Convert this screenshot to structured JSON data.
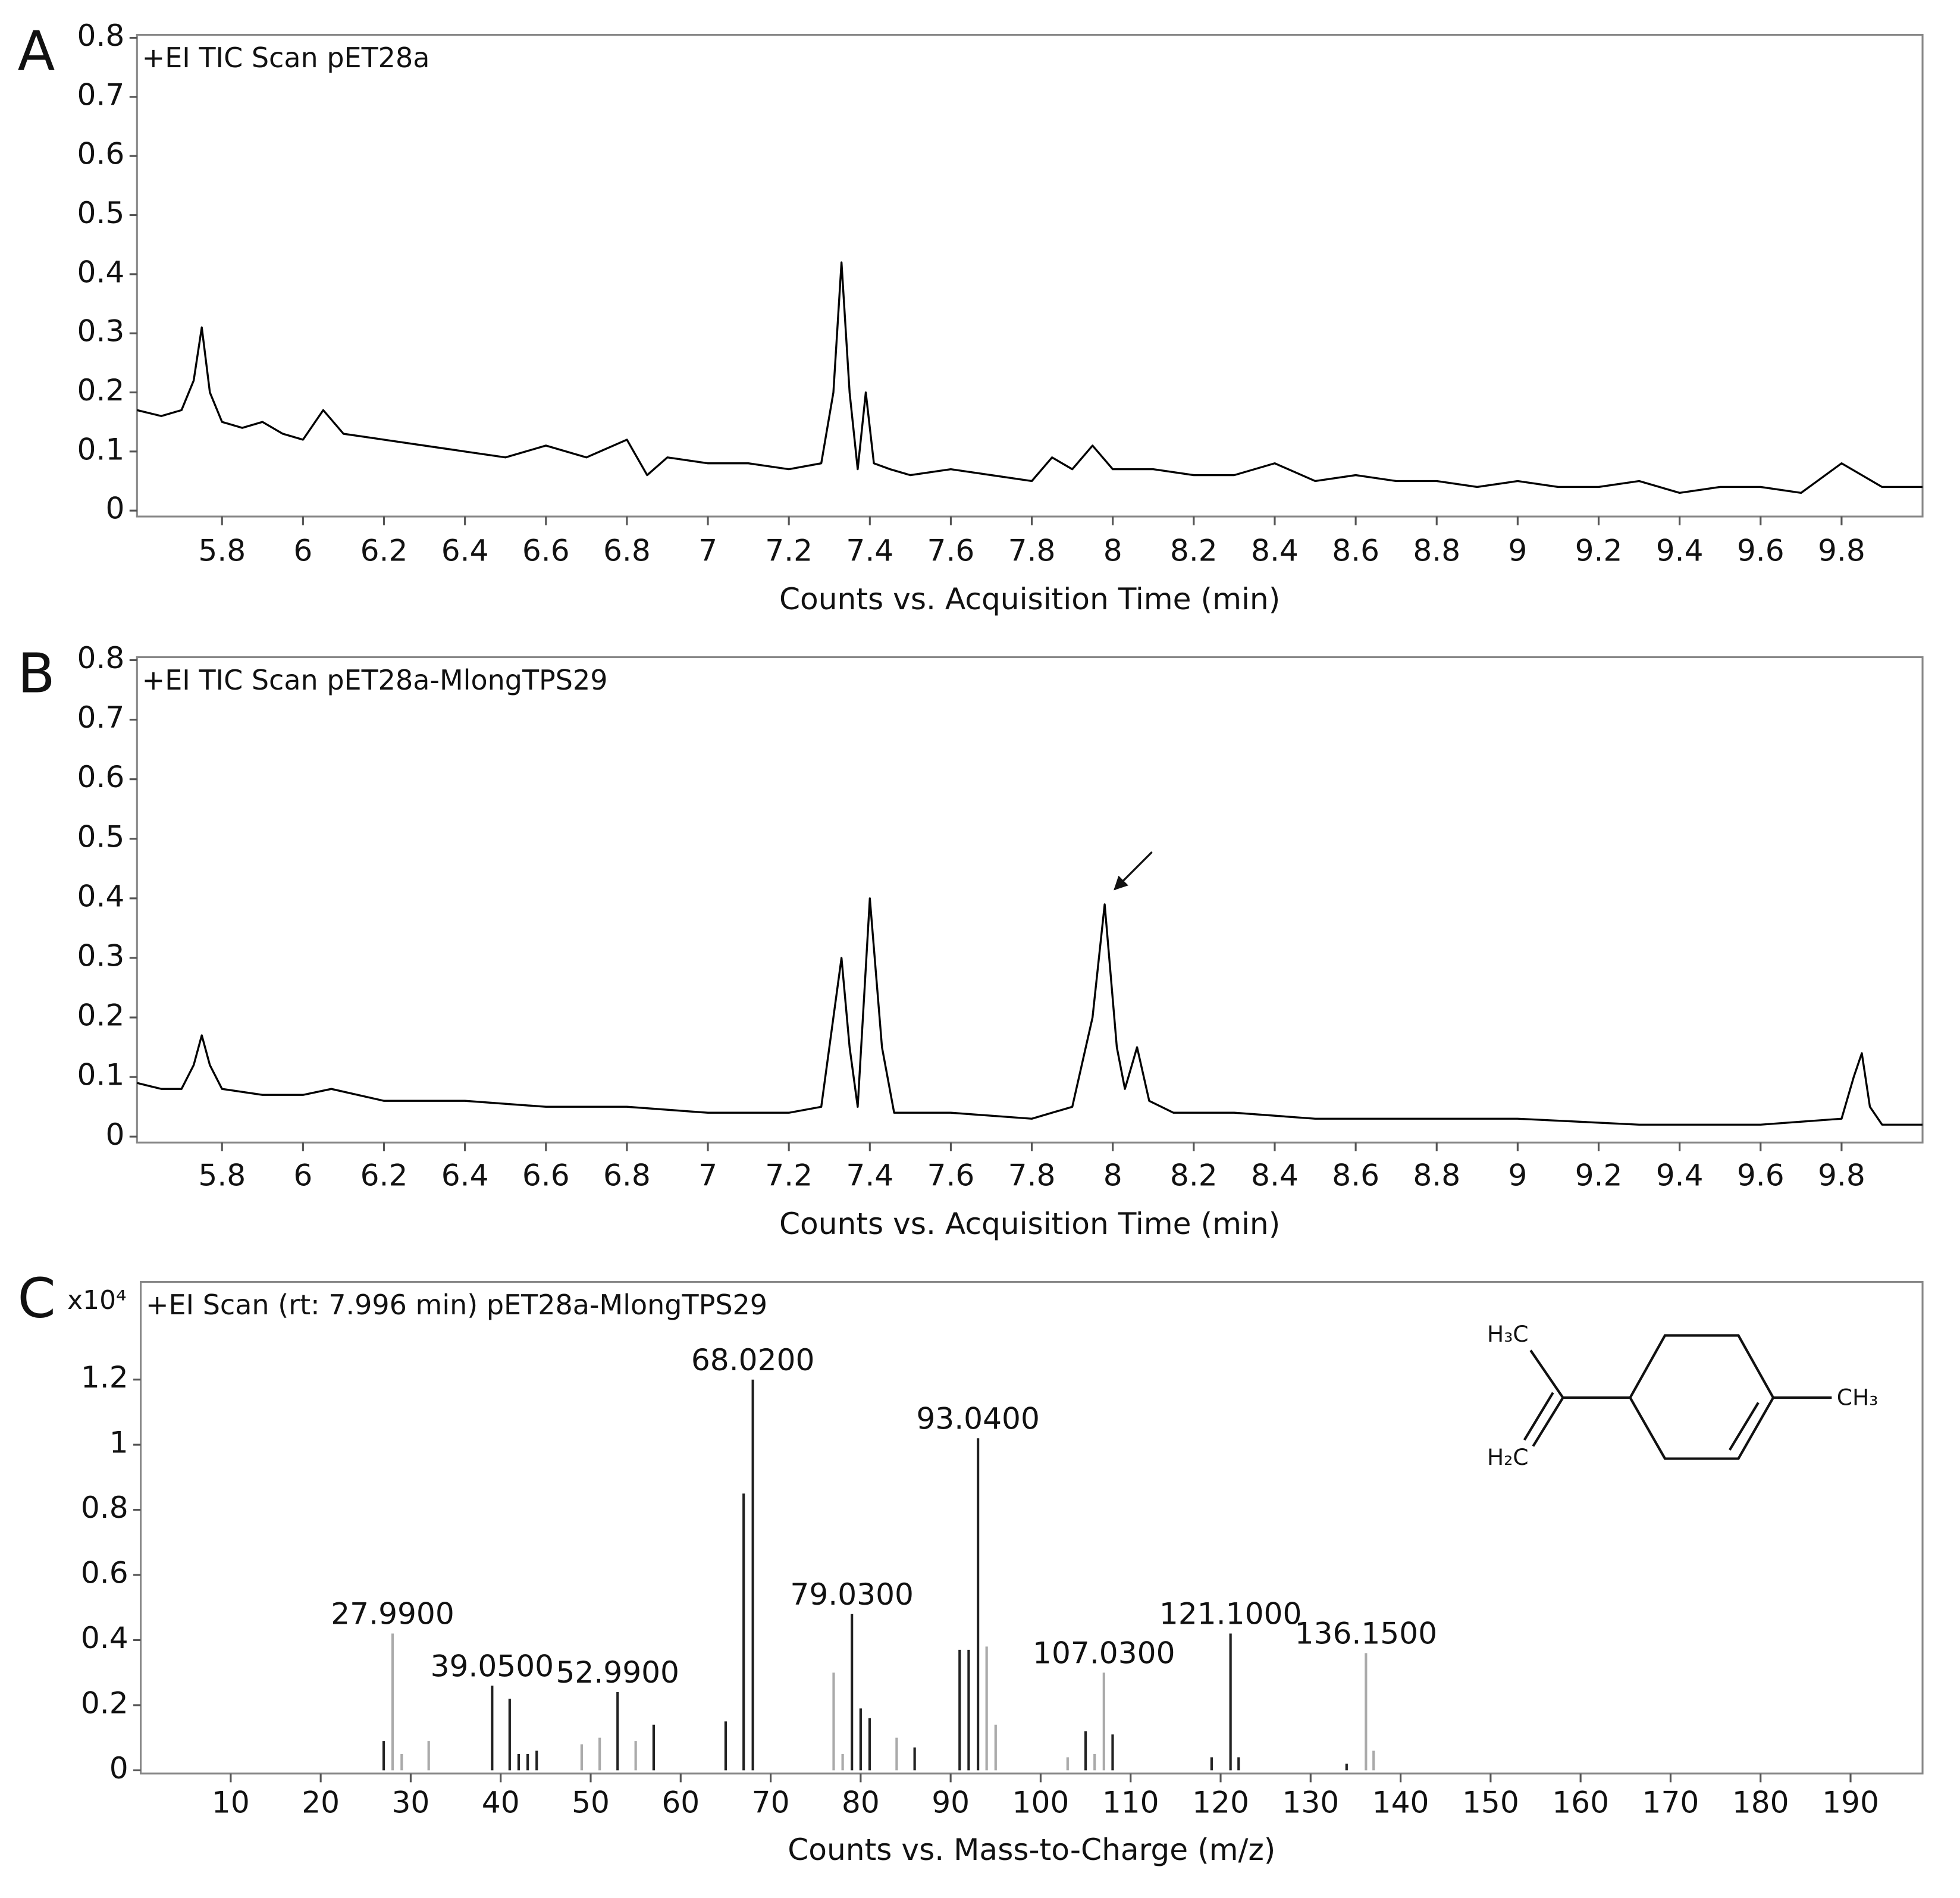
{
  "chart_data": [
    {
      "type": "line",
      "panel": "A",
      "title": "+EI TIC Scan pET28a",
      "x_label": "Counts vs. Acquisition Time (min)",
      "color": "#000000",
      "x": [
        5.59,
        5.65,
        5.7,
        5.73,
        5.75,
        5.77,
        5.8,
        5.85,
        5.9,
        5.95,
        6.0,
        6.05,
        6.1,
        6.2,
        6.3,
        6.4,
        6.5,
        6.6,
        6.7,
        6.8,
        6.85,
        6.9,
        7.0,
        7.1,
        7.2,
        7.28,
        7.31,
        7.33,
        7.35,
        7.37,
        7.39,
        7.41,
        7.45,
        7.5,
        7.6,
        7.7,
        7.8,
        7.85,
        7.9,
        7.95,
        8.0,
        8.1,
        8.2,
        8.3,
        8.4,
        8.5,
        8.6,
        8.7,
        8.8,
        8.9,
        9.0,
        9.1,
        9.2,
        9.3,
        9.4,
        9.5,
        9.6,
        9.7,
        9.8,
        9.9,
        10.0
      ],
      "values": [
        0.17,
        0.16,
        0.17,
        0.22,
        0.31,
        0.2,
        0.15,
        0.14,
        0.15,
        0.13,
        0.12,
        0.17,
        0.13,
        0.12,
        0.11,
        0.1,
        0.09,
        0.11,
        0.09,
        0.12,
        0.06,
        0.09,
        0.08,
        0.08,
        0.07,
        0.08,
        0.2,
        0.42,
        0.2,
        0.07,
        0.2,
        0.08,
        0.07,
        0.06,
        0.07,
        0.06,
        0.05,
        0.09,
        0.07,
        0.11,
        0.07,
        0.07,
        0.06,
        0.06,
        0.08,
        0.05,
        0.06,
        0.05,
        0.05,
        0.04,
        0.05,
        0.04,
        0.04,
        0.05,
        0.03,
        0.04,
        0.04,
        0.03,
        0.08,
        0.04,
        0.04
      ],
      "xlim": [
        5.59,
        10.0
      ],
      "ylim": [
        -0.01,
        0.805
      ],
      "xticks": [
        5.8,
        6,
        6.2,
        6.4,
        6.6,
        6.8,
        7,
        7.2,
        7.4,
        7.6,
        7.8,
        8,
        8.2,
        8.4,
        8.6,
        8.8,
        9,
        9.2,
        9.4,
        9.6,
        9.8
      ],
      "yticks": [
        0,
        0.1,
        0.2,
        0.3,
        0.4,
        0.5,
        0.6,
        0.7,
        0.8
      ]
    },
    {
      "type": "line",
      "panel": "B",
      "title": "+EI TIC Scan pET28a-MlongTPS29",
      "x_label": "Counts vs. Acquisition Time (min)",
      "color": "#000000",
      "x": [
        5.59,
        5.65,
        5.7,
        5.73,
        5.75,
        5.77,
        5.8,
        5.9,
        6.0,
        6.07,
        6.2,
        6.4,
        6.6,
        6.8,
        7.0,
        7.2,
        7.28,
        7.31,
        7.33,
        7.35,
        7.37,
        7.4,
        7.43,
        7.46,
        7.6,
        7.8,
        7.9,
        7.95,
        7.98,
        8.01,
        8.03,
        8.06,
        8.09,
        8.15,
        8.3,
        8.5,
        8.7,
        9.0,
        9.3,
        9.6,
        9.8,
        9.83,
        9.85,
        9.87,
        9.9,
        10.0
      ],
      "values": [
        0.09,
        0.08,
        0.08,
        0.12,
        0.17,
        0.12,
        0.08,
        0.07,
        0.07,
        0.08,
        0.06,
        0.06,
        0.05,
        0.05,
        0.04,
        0.04,
        0.05,
        0.2,
        0.3,
        0.15,
        0.05,
        0.4,
        0.15,
        0.04,
        0.04,
        0.03,
        0.05,
        0.2,
        0.39,
        0.15,
        0.08,
        0.15,
        0.06,
        0.04,
        0.04,
        0.03,
        0.03,
        0.03,
        0.02,
        0.02,
        0.03,
        0.1,
        0.14,
        0.05,
        0.02,
        0.02
      ],
      "xlim": [
        5.59,
        10.0
      ],
      "ylim": [
        -0.01,
        0.805
      ],
      "xticks": [
        5.8,
        6,
        6.2,
        6.4,
        6.6,
        6.8,
        7,
        7.2,
        7.4,
        7.6,
        7.8,
        8,
        8.2,
        8.4,
        8.6,
        8.8,
        9,
        9.2,
        9.4,
        9.6,
        9.8
      ],
      "yticks": [
        0,
        0.1,
        0.2,
        0.3,
        0.4,
        0.5,
        0.6,
        0.7,
        0.8
      ]
    },
    {
      "type": "bar",
      "panel": "C",
      "title": "+EI Scan (rt: 7.996 min) pET28a-MlongTPS29",
      "y_multiplier": "x10⁴",
      "x_label": "Counts vs. Mass-to-Charge (m/z)",
      "series": [
        {
          "color": "#222222",
          "x": [
            27,
            39.05,
            41,
            42,
            43,
            44,
            52.99,
            57,
            65,
            67,
            68.02,
            79.03,
            80,
            81,
            86,
            91,
            92,
            93.04,
            105,
            108,
            119,
            121.1,
            122,
            134
          ],
          "values": [
            0.09,
            0.26,
            0.22,
            0.05,
            0.05,
            0.06,
            0.24,
            0.14,
            0.15,
            0.85,
            1.2,
            0.48,
            0.19,
            0.16,
            0.07,
            0.37,
            0.37,
            1.02,
            0.12,
            0.11,
            0.04,
            0.42,
            0.04,
            0.02
          ]
        },
        {
          "color": "#aaaaaa",
          "x": [
            27.99,
            29,
            32,
            49,
            51,
            55,
            77,
            78,
            84,
            94,
            95,
            103,
            106,
            107.03,
            136.15,
            137
          ],
          "values": [
            0.42,
            0.05,
            0.09,
            0.08,
            0.1,
            0.09,
            0.3,
            0.05,
            0.1,
            0.38,
            0.14,
            0.04,
            0.05,
            0.3,
            0.36,
            0.06
          ]
        }
      ],
      "peak_labels": [
        {
          "value": 27.99,
          "label": "27.9900"
        },
        {
          "value": 39.05,
          "label": "39.0500"
        },
        {
          "value": 52.99,
          "label": "52.9900"
        },
        {
          "value": 68.02,
          "label": "68.0200"
        },
        {
          "value": 79.03,
          "label": "79.0300"
        },
        {
          "value": 93.04,
          "label": "93.0400"
        },
        {
          "value": 107.03,
          "label": "107.0300"
        },
        {
          "value": 121.1,
          "label": "121.1000"
        },
        {
          "value": 136.15,
          "label": "136.1500"
        }
      ],
      "xlim": [
        0,
        198
      ],
      "ylim": [
        -0.01,
        1.5
      ],
      "xticks": [
        10,
        20,
        30,
        40,
        50,
        60,
        70,
        80,
        90,
        100,
        110,
        120,
        130,
        140,
        150,
        160,
        170,
        180,
        190
      ],
      "yticks": [
        0,
        0.2,
        0.4,
        0.6,
        0.8,
        1,
        1.2
      ]
    }
  ],
  "structure": {
    "labels": [
      "H₃C",
      "H₂C",
      "CH₃"
    ]
  }
}
